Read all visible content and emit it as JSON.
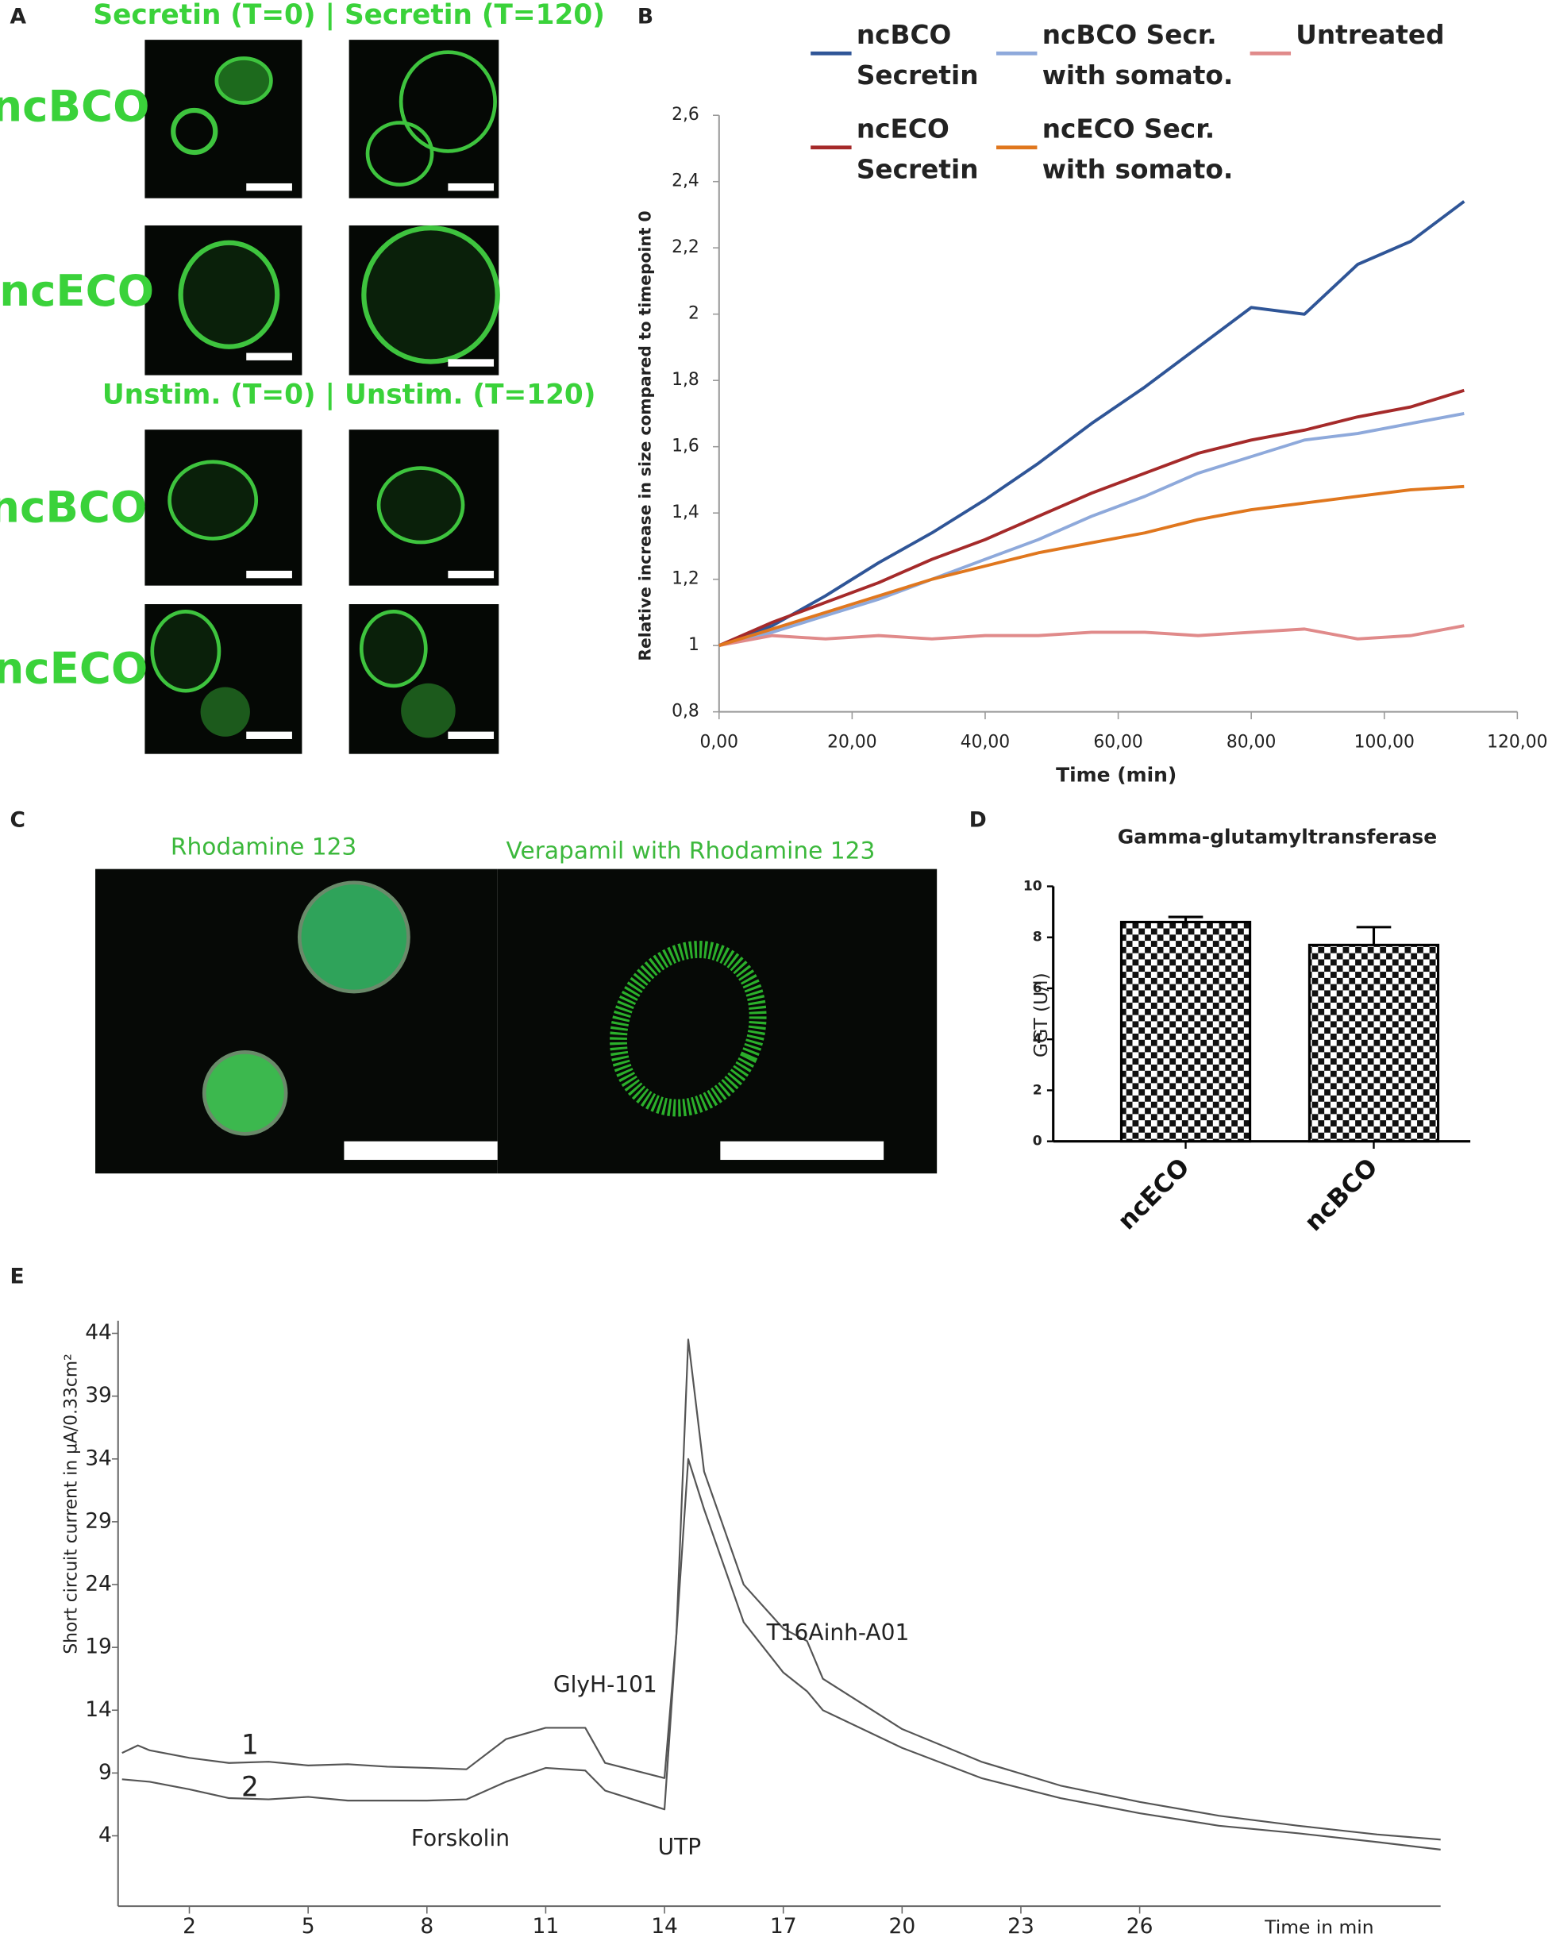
{
  "panel_labels": [
    "A",
    "B",
    "C",
    "D",
    "E"
  ],
  "panel_a": {
    "column_headers": [
      "Secretin (T=0) | Secretin (T=120)",
      "Unstim. (T=0) | Unstim. (T=120)"
    ],
    "row_labels": [
      "ncBCO",
      "ncECO",
      "ncBCO",
      "ncECO"
    ]
  },
  "panel_c": {
    "labels": [
      "Rhodamine 123",
      "Verapamil with Rhodamine 123"
    ]
  },
  "chart_data": [
    {
      "type": "line",
      "xlabel": "Time (min)",
      "ylabel": "Relative increase in size compared to timepoint 0",
      "x": [
        0,
        8,
        16,
        24,
        32,
        40,
        48,
        56,
        64,
        72,
        80,
        88,
        96,
        104,
        112
      ],
      "xlim": [
        0,
        120
      ],
      "xticks": [
        {
          "value": 0,
          "label": "0,00"
        },
        {
          "value": 20,
          "label": "20,00"
        },
        {
          "value": 40,
          "label": "40,00"
        },
        {
          "value": 60,
          "label": "60,00"
        },
        {
          "value": 80,
          "label": "80,00"
        },
        {
          "value": 100,
          "label": "100,00"
        },
        {
          "value": 120,
          "label": "120,00"
        }
      ],
      "ylim": [
        0.8,
        2.6
      ],
      "yticks": [
        {
          "value": 0.8,
          "label": "0,8"
        },
        1,
        {
          "value": 1.2,
          "label": "1,2"
        },
        {
          "value": 1.4,
          "label": "1,4"
        },
        {
          "value": 1.6,
          "label": "1,6"
        },
        {
          "value": 1.8,
          "label": "1,8"
        },
        2,
        {
          "value": 2.2,
          "label": "2,2"
        },
        {
          "value": 2.4,
          "label": "2,4"
        },
        {
          "value": 2.6,
          "label": "2,6"
        }
      ],
      "series": [
        {
          "name": "ncBCO Secretin",
          "color": "#2f5597",
          "values": [
            1,
            1.06,
            1.15,
            1.25,
            1.34,
            1.44,
            1.55,
            1.67,
            1.78,
            1.9,
            2.02,
            2.0,
            2.15,
            2.22,
            2.34
          ]
        },
        {
          "name": "ncBCO Secr. with somato.",
          "color": "#8ea9db",
          "values": [
            1,
            1.04,
            1.09,
            1.14,
            1.2,
            1.26,
            1.32,
            1.39,
            1.45,
            1.52,
            1.57,
            1.62,
            1.64,
            1.67,
            1.7
          ]
        },
        {
          "name": "Untreated",
          "color": "#e08a8a",
          "values": [
            1,
            1.03,
            1.02,
            1.03,
            1.02,
            1.03,
            1.03,
            1.04,
            1.04,
            1.03,
            1.04,
            1.05,
            1.02,
            1.03,
            1.06
          ]
        },
        {
          "name": "ncECO Secretin",
          "color": "#a52a2a",
          "values": [
            1,
            1.07,
            1.13,
            1.19,
            1.26,
            1.32,
            1.39,
            1.46,
            1.52,
            1.58,
            1.62,
            1.65,
            1.69,
            1.72,
            1.77
          ]
        },
        {
          "name": "ncECO Secr. with somato.",
          "color": "#e0771e",
          "values": [
            1,
            1.05,
            1.1,
            1.15,
            1.2,
            1.24,
            1.28,
            1.31,
            1.34,
            1.38,
            1.41,
            1.43,
            1.45,
            1.47,
            1.48
          ]
        }
      ]
    },
    {
      "type": "bar",
      "title": "Gamma-glutamyltransferase",
      "ylabel": "GGT (U/l)",
      "categories": [
        "ncECO",
        "ncBCO"
      ],
      "values": [
        8.6,
        7.7
      ],
      "errors": [
        0.2,
        0.7
      ],
      "ylim": [
        0,
        10
      ],
      "yticks": [
        0,
        2,
        4,
        6,
        8,
        10
      ]
    },
    {
      "type": "line",
      "xlabel": "Time in min",
      "ylabel": "Short circuit current in µA/0.33cm²",
      "xlim": [
        0.2,
        33.6
      ],
      "xticks": [
        2,
        5,
        8,
        11,
        14,
        17,
        20,
        23,
        26
      ],
      "ylim": [
        -1.6,
        45
      ],
      "yticks": [
        4,
        9,
        14,
        19,
        24,
        29,
        34,
        39,
        44
      ],
      "annotations": [
        "GlyH-101",
        "Forskolin",
        "UTP",
        "T16Ainh-A01"
      ],
      "series": [
        {
          "name": "1",
          "color": "#555555",
          "x": [
            0.3,
            0.7,
            1,
            2,
            3,
            4,
            5,
            6,
            7,
            8,
            9,
            10,
            11,
            12,
            12.5,
            14,
            14.3,
            14.6,
            15,
            16,
            17,
            17.6,
            18,
            20,
            22,
            24,
            26,
            28,
            30,
            32,
            33.6
          ],
          "values": [
            10.6,
            11.2,
            10.8,
            10.2,
            9.8,
            9.9,
            9.6,
            9.7,
            9.5,
            9.4,
            9.3,
            11.7,
            12.6,
            12.6,
            9.8,
            8.6,
            20,
            43.5,
            33,
            24,
            20.5,
            19.5,
            16.5,
            12.5,
            9.9,
            8,
            6.7,
            5.6,
            4.8,
            4.1,
            3.7
          ]
        },
        {
          "name": "2",
          "color": "#555555",
          "x": [
            0.3,
            1,
            2,
            3,
            4,
            5,
            6,
            7,
            8,
            9,
            10,
            11,
            12,
            12.5,
            14,
            14.3,
            14.6,
            15,
            16,
            17,
            17.6,
            18,
            20,
            22,
            24,
            26,
            28,
            30,
            32,
            33.6
          ],
          "values": [
            8.5,
            8.3,
            7.7,
            7,
            6.9,
            7.1,
            6.8,
            6.8,
            6.8,
            6.9,
            8.3,
            9.4,
            9.2,
            7.6,
            6.1,
            20,
            34,
            30,
            21,
            17,
            15.5,
            14,
            11,
            8.6,
            7,
            5.8,
            4.8,
            4.2,
            3.5,
            2.9
          ]
        }
      ]
    }
  ]
}
